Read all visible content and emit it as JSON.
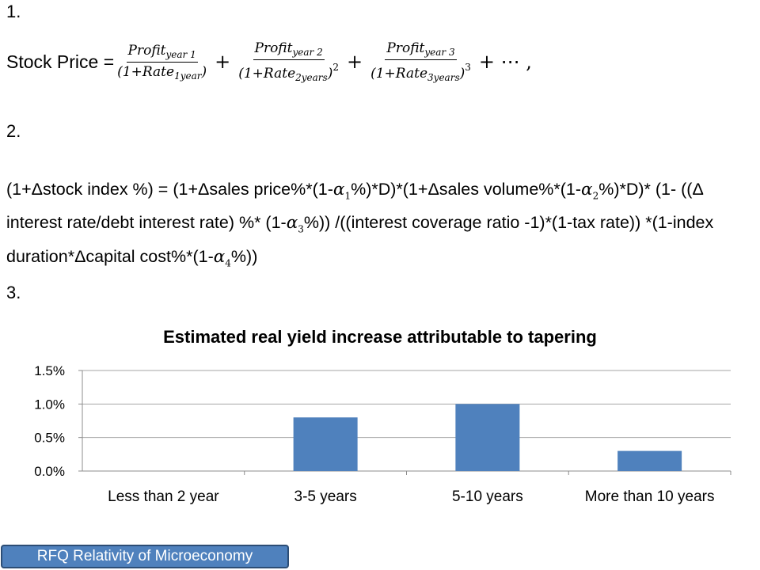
{
  "section1": {
    "number": "1.",
    "lhs": "Stock Price =",
    "terms": [
      {
        "num_base": "Profit",
        "num_sub": "year 1",
        "den_pre": "(1+Rate",
        "den_sub": "1year",
        "den_post": ")",
        "power": ""
      },
      {
        "num_base": "Profit",
        "num_sub": "year 2",
        "den_pre": "(1+Rate",
        "den_sub": "2years",
        "den_post": ")",
        "power": "2"
      },
      {
        "num_base": "Profit",
        "num_sub": "year 3",
        "den_pre": "(1+Rate",
        "den_sub": "3years",
        "den_post": ")",
        "power": "3"
      }
    ],
    "plus": "+",
    "tail": "+ ⋯ ,"
  },
  "section2": {
    "number": "2.",
    "p1": "(1+Δstock index %) = (1+Δsales price%*(1-",
    "a1": "α",
    "a1_sub": "1",
    "p2": "%)*D)*(1+Δsales volume%*(1-",
    "a2": "α",
    "a2_sub": "2",
    "p3": "%)*D)* (1- ((Δ interest rate/debt interest rate) %* (1-",
    "a3": "α",
    "a3_sub": "3",
    "p4": "%)) /((interest coverage ratio -1)*(1-tax rate)) *(1-index duration*Δcapital cost%*(1-",
    "a4": "α",
    "a4_sub": "4",
    "p5": "%))"
  },
  "section3": {
    "number": "3."
  },
  "chart_data": {
    "type": "bar",
    "title": "Estimated real yield increase attributable to tapering",
    "categories": [
      "Less than 2 year",
      "3-5 years",
      "5-10 years",
      "More than 10 years"
    ],
    "values": [
      0.0,
      0.8,
      1.0,
      0.3
    ],
    "yticks": [
      "0.0%",
      "0.5%",
      "1.0%",
      "1.5%"
    ],
    "ylim": [
      0,
      1.5
    ],
    "grid": true,
    "bar_color": "#4f81bd"
  },
  "footer_button": "RFQ Relativity of Microeconomy"
}
